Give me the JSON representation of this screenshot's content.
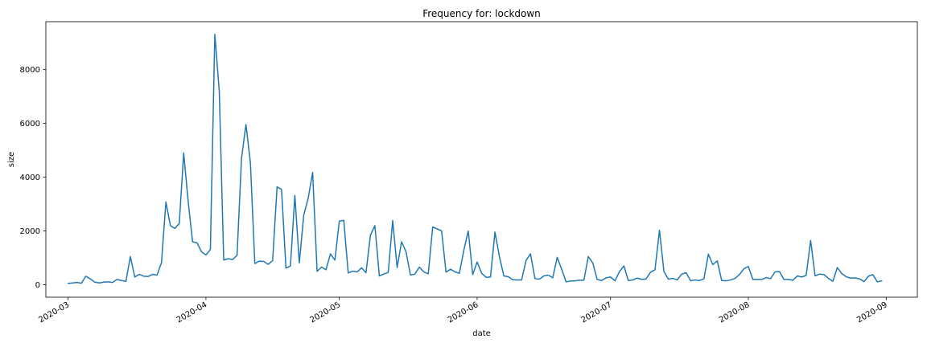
{
  "chart_data": {
    "type": "line",
    "title": "Frequency for: lockdown",
    "xlabel": "date",
    "ylabel": "size",
    "x_tick_labels": [
      "2020-03",
      "2020-04",
      "2020-05",
      "2020-06",
      "2020-07",
      "2020-08",
      "2020-09"
    ],
    "x_tick_dates": [
      "2020-03-01",
      "2020-04-01",
      "2020-05-01",
      "2020-06-01",
      "2020-07-01",
      "2020-08-01",
      "2020-09-01"
    ],
    "y_ticks": [
      0,
      2000,
      4000,
      6000,
      8000
    ],
    "xlim": [
      "2020-02-25",
      "2020-09-08"
    ],
    "ylim": [
      -460,
      9780
    ],
    "grid": false,
    "line_color": "#1f77b4",
    "series": [
      {
        "x": [
          "2020-03-01",
          "2020-03-02",
          "2020-03-03",
          "2020-03-04",
          "2020-03-05",
          "2020-03-06",
          "2020-03-07",
          "2020-03-08",
          "2020-03-09",
          "2020-03-10",
          "2020-03-11",
          "2020-03-12",
          "2020-03-13",
          "2020-03-14",
          "2020-03-15",
          "2020-03-16",
          "2020-03-17",
          "2020-03-18",
          "2020-03-19",
          "2020-03-20",
          "2020-03-21",
          "2020-03-22",
          "2020-03-23",
          "2020-03-24",
          "2020-03-25",
          "2020-03-26",
          "2020-03-27",
          "2020-03-28",
          "2020-03-29",
          "2020-03-30",
          "2020-03-31",
          "2020-04-01",
          "2020-04-02",
          "2020-04-03",
          "2020-04-04",
          "2020-04-05",
          "2020-04-06",
          "2020-04-07",
          "2020-04-08",
          "2020-04-09",
          "2020-04-10",
          "2020-04-11",
          "2020-04-12",
          "2020-04-13",
          "2020-04-14",
          "2020-04-15",
          "2020-04-16",
          "2020-04-17",
          "2020-04-18",
          "2020-04-19",
          "2020-04-20",
          "2020-04-21",
          "2020-04-22",
          "2020-04-23",
          "2020-04-24",
          "2020-04-25",
          "2020-04-26",
          "2020-04-27",
          "2020-04-28",
          "2020-04-29",
          "2020-04-30",
          "2020-05-01",
          "2020-05-02",
          "2020-05-03",
          "2020-05-04",
          "2020-05-05",
          "2020-05-06",
          "2020-05-07",
          "2020-05-08",
          "2020-05-09",
          "2020-05-10",
          "2020-05-11",
          "2020-05-12",
          "2020-05-13",
          "2020-05-14",
          "2020-05-15",
          "2020-05-16",
          "2020-05-17",
          "2020-05-18",
          "2020-05-19",
          "2020-05-20",
          "2020-05-21",
          "2020-05-22",
          "2020-05-23",
          "2020-05-24",
          "2020-05-25",
          "2020-05-26",
          "2020-05-27",
          "2020-05-28",
          "2020-05-29",
          "2020-05-30",
          "2020-05-31",
          "2020-06-01",
          "2020-06-02",
          "2020-06-03",
          "2020-06-04",
          "2020-06-05",
          "2020-06-06",
          "2020-06-07",
          "2020-06-08",
          "2020-06-09",
          "2020-06-10",
          "2020-06-11",
          "2020-06-12",
          "2020-06-13",
          "2020-06-14",
          "2020-06-15",
          "2020-06-16",
          "2020-06-17",
          "2020-06-18",
          "2020-06-19",
          "2020-06-20",
          "2020-06-21",
          "2020-06-22",
          "2020-06-23",
          "2020-06-24",
          "2020-06-25",
          "2020-06-26",
          "2020-06-27",
          "2020-06-28",
          "2020-06-29",
          "2020-06-30",
          "2020-07-01",
          "2020-07-02",
          "2020-07-03",
          "2020-07-04",
          "2020-07-05",
          "2020-07-06",
          "2020-07-07",
          "2020-07-08",
          "2020-07-09",
          "2020-07-10",
          "2020-07-11",
          "2020-07-12",
          "2020-07-13",
          "2020-07-14",
          "2020-07-15",
          "2020-07-16",
          "2020-07-17",
          "2020-07-18",
          "2020-07-19",
          "2020-07-20",
          "2020-07-21",
          "2020-07-22",
          "2020-07-23",
          "2020-07-24",
          "2020-07-25",
          "2020-07-26",
          "2020-07-27",
          "2020-07-28",
          "2020-07-29",
          "2020-07-30",
          "2020-07-31",
          "2020-08-01",
          "2020-08-02",
          "2020-08-03",
          "2020-08-04",
          "2020-08-05",
          "2020-08-06",
          "2020-08-07",
          "2020-08-08",
          "2020-08-09",
          "2020-08-10",
          "2020-08-11",
          "2020-08-12",
          "2020-08-13",
          "2020-08-14",
          "2020-08-15",
          "2020-08-16",
          "2020-08-17",
          "2020-08-18",
          "2020-08-19",
          "2020-08-20",
          "2020-08-21",
          "2020-08-22",
          "2020-08-23",
          "2020-08-24",
          "2020-08-25",
          "2020-08-26",
          "2020-08-27",
          "2020-08-28",
          "2020-08-29",
          "2020-08-30",
          "2020-08-31"
        ],
        "values": [
          50,
          70,
          90,
          60,
          320,
          220,
          100,
          70,
          100,
          110,
          90,
          200,
          160,
          130,
          1050,
          290,
          390,
          320,
          310,
          390,
          360,
          820,
          3080,
          2200,
          2100,
          2280,
          4900,
          3100,
          1600,
          1560,
          1230,
          1110,
          1310,
          9310,
          7200,
          920,
          970,
          940,
          1100,
          4700,
          5960,
          4540,
          790,
          880,
          870,
          760,
          900,
          3640,
          3550,
          620,
          700,
          3320,
          810,
          2590,
          3220,
          4180,
          500,
          660,
          560,
          1150,
          920,
          2370,
          2400,
          440,
          510,
          480,
          630,
          450,
          1850,
          2200,
          330,
          400,
          460,
          2390,
          640,
          1600,
          1230,
          360,
          400,
          660,
          480,
          410,
          2150,
          2080,
          2000,
          470,
          580,
          480,
          430,
          1280,
          2000,
          380,
          850,
          430,
          280,
          290,
          1960,
          1050,
          330,
          300,
          190,
          180,
          180,
          910,
          1150,
          230,
          210,
          330,
          360,
          260,
          1020,
          580,
          110,
          140,
          150,
          170,
          170,
          1050,
          810,
          200,
          160,
          260,
          290,
          150,
          490,
          700,
          160,
          180,
          250,
          200,
          220,
          470,
          560,
          2030,
          500,
          210,
          240,
          180,
          400,
          450,
          150,
          180,
          160,
          220,
          1140,
          750,
          890,
          160,
          150,
          180,
          240,
          380,
          600,
          680,
          200,
          200,
          200,
          270,
          230,
          480,
          490,
          200,
          200,
          170,
          330,
          290,
          350,
          1650,
          330,
          400,
          380,
          240,
          130,
          640,
          420,
          300,
          250,
          260,
          220,
          120,
          320,
          380,
          110,
          150
        ]
      }
    ]
  }
}
